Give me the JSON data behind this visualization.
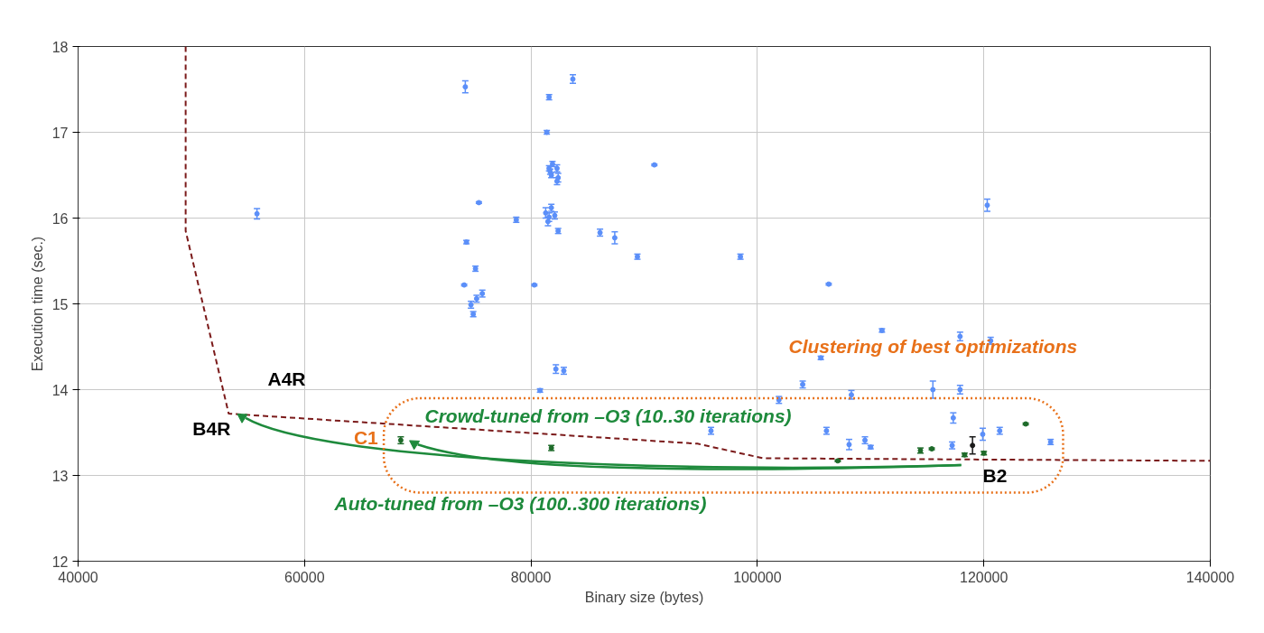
{
  "chart_data": {
    "type": "scatter",
    "xlabel": "Binary size (bytes)",
    "ylabel": "Execution time (sec.)",
    "xlim": [
      40000,
      140000
    ],
    "xticks": [
      40000,
      60000,
      80000,
      100000,
      120000,
      140000
    ],
    "ylim": [
      12,
      18
    ],
    "yticks": [
      12,
      13,
      14,
      15,
      16,
      17,
      18
    ],
    "grid": true,
    "series": [
      {
        "type": "line",
        "color": "#7b1a1a",
        "line_style": "dashed",
        "x": [
          49500,
          49500,
          53300,
          94700,
          100500,
          140000
        ],
        "values": [
          18,
          15.85,
          13.72,
          13.37,
          13.2,
          13.17
        ]
      },
      {
        "color": "#5b8ff9",
        "marker": "circle",
        "x": [
          74200,
          81600,
          83700,
          81400,
          81600,
          81700,
          81800,
          82300,
          82400,
          82300,
          81900,
          90900,
          55800,
          75400,
          78700,
          81300,
          81600,
          81500,
          81800,
          82100,
          82400,
          86100,
          87400,
          89400,
          98500,
          74300,
          75100,
          74100,
          80300,
          75700,
          75200,
          74700,
          74900,
          106300,
          111000,
          82200,
          82900,
          80800,
          101900,
          104000,
          108300,
          106100,
          108100,
          95900,
          105600,
          115500,
          117900,
          120600,
          117900,
          120300,
          117300,
          109500,
          110000,
          117200,
          119900,
          121400,
          125900
        ],
        "values": [
          17.53,
          17.41,
          17.62,
          17.0,
          16.58,
          16.54,
          16.5,
          16.58,
          16.47,
          16.43,
          16.63,
          16.62,
          16.05,
          16.18,
          15.98,
          16.06,
          16.01,
          15.96,
          16.12,
          16.03,
          15.85,
          15.83,
          15.77,
          15.55,
          15.55,
          15.72,
          15.41,
          15.22,
          15.22,
          15.12,
          15.06,
          14.99,
          14.88,
          15.23,
          14.69,
          14.24,
          14.22,
          13.99,
          13.88,
          14.06,
          13.94,
          13.52,
          13.36,
          13.52,
          14.37,
          14.0,
          14.62,
          14.57,
          14.0,
          16.15,
          13.67,
          13.41,
          13.33,
          13.35,
          13.48,
          13.52,
          13.39
        ],
        "errors": [
          0.07,
          0.03,
          0.05,
          0.02,
          0.03,
          0.03,
          0.03,
          0.04,
          0.05,
          0.04,
          0.03,
          0.01,
          0.06,
          0.01,
          0.03,
          0.06,
          0.05,
          0.05,
          0.04,
          0.04,
          0.03,
          0.04,
          0.07,
          0.03,
          0.03,
          0.02,
          0.03,
          0.01,
          0.01,
          0.04,
          0.04,
          0.04,
          0.03,
          0.01,
          0.02,
          0.05,
          0.04,
          0.02,
          0.04,
          0.04,
          0.05,
          0.04,
          0.06,
          0.04,
          0.02,
          0.1,
          0.05,
          0.04,
          0.05,
          0.07,
          0.06,
          0.04,
          0.02,
          0.04,
          0.07,
          0.04,
          0.03
        ]
      },
      {
        "color": "#1e6b2a",
        "marker": "circle",
        "x": [
          68500,
          81800,
          107100,
          114400,
          115400,
          123700,
          118300,
          120000
        ],
        "values": [
          13.41,
          13.32,
          13.17,
          13.29,
          13.31,
          13.6,
          13.24,
          13.26
        ],
        "errors": [
          0.04,
          0.03,
          0.01,
          0.03,
          0.01,
          0.01,
          0.02,
          0.02
        ]
      },
      {
        "color": "#1a1a1a",
        "marker": "circle",
        "x": [
          119000
        ],
        "values": [
          13.35
        ],
        "errors": [
          0.1
        ]
      }
    ],
    "annotations": [
      "A4R",
      {
        "text": "B4R",
        "x": 53300,
        "y": 13.72
      },
      {
        "text": "C1",
        "x": 68500,
        "y": 13.41
      },
      "B2",
      "Crowd-tuned from –O3 (10..30 iterations)",
      "Auto-tuned from –O3 (100..300 iterations)",
      "Clustering of best optimizations"
    ]
  }
}
